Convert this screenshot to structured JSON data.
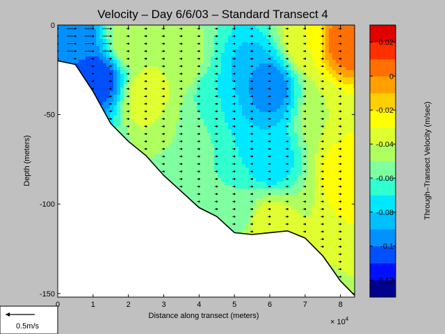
{
  "chart_data": {
    "type": "heatmap",
    "title": "Velocity – Day 6/6/03 – Standard Transect 4",
    "xlabel": "Distance along transect (meters)",
    "x_multiplier": "× 10",
    "x_multiplier_exp": "4",
    "ylabel": "Depth (meters)",
    "xlim": [
      0,
      8.4
    ],
    "ylim": [
      -152,
      0
    ],
    "x_ticks": [
      "0",
      "1",
      "2",
      "3",
      "4",
      "5",
      "6",
      "7",
      "8"
    ],
    "y_ticks": [
      {
        "value": 0,
        "label": "0"
      },
      {
        "value": -50,
        "label": "-50"
      },
      {
        "value": -100,
        "label": "-100"
      },
      {
        "value": -150,
        "label": "-150"
      }
    ],
    "colorbar": {
      "label": "Through–Transect Velocity (m/sec)",
      "range": [
        -0.13,
        0.03
      ],
      "ticks": [
        {
          "value": 0.02,
          "label": "0.02"
        },
        {
          "value": 0,
          "label": "0"
        },
        {
          "value": -0.02,
          "label": "-0.02"
        },
        {
          "value": -0.04,
          "label": "-0.04"
        },
        {
          "value": -0.06,
          "label": "-0.06"
        },
        {
          "value": -0.08,
          "label": "-0.08"
        },
        {
          "value": -0.1,
          "label": "-0.1"
        },
        {
          "value": -0.12,
          "label": "-0.12"
        }
      ],
      "levels": [
        -0.13,
        -0.12,
        -0.11,
        -0.1,
        -0.09,
        -0.08,
        -0.07,
        -0.06,
        -0.05,
        -0.04,
        -0.03,
        -0.02,
        -0.01,
        0.0,
        0.01,
        0.02,
        0.03
      ],
      "colors": [
        "#00008f",
        "#0010ff",
        "#0050ff",
        "#0090ff",
        "#00c0ff",
        "#00e8ff",
        "#30ffd0",
        "#80ffa0",
        "#b0ff60",
        "#e0ff30",
        "#ffff00",
        "#ffd000",
        "#ffa000",
        "#ff7000",
        "#ff3000",
        "#e00000",
        "#a00000"
      ]
    },
    "seafloor": [
      {
        "x": 0,
        "depth": -20
      },
      {
        "x": 0.5,
        "depth": -22
      },
      {
        "x": 1.0,
        "depth": -37
      },
      {
        "x": 1.5,
        "depth": -55
      },
      {
        "x": 2.0,
        "depth": -65
      },
      {
        "x": 2.5,
        "depth": -73
      },
      {
        "x": 3.0,
        "depth": -84
      },
      {
        "x": 3.5,
        "depth": -93
      },
      {
        "x": 4.0,
        "depth": -102
      },
      {
        "x": 4.5,
        "depth": -107
      },
      {
        "x": 5.0,
        "depth": -116
      },
      {
        "x": 5.5,
        "depth": -117
      },
      {
        "x": 6.0,
        "depth": -116
      },
      {
        "x": 6.5,
        "depth": -115
      },
      {
        "x": 7.0,
        "depth": -119
      },
      {
        "x": 7.5,
        "depth": -129
      },
      {
        "x": 8.0,
        "depth": -143
      },
      {
        "x": 8.4,
        "depth": -151
      }
    ],
    "velocity_field": {
      "description_points": [
        {
          "x": 0.5,
          "depth": -10,
          "v": -0.1
        },
        {
          "x": 1.2,
          "depth": -30,
          "v": -0.11
        },
        {
          "x": 2.0,
          "depth": -10,
          "v": -0.04
        },
        {
          "x": 2.5,
          "depth": -40,
          "v": -0.03
        },
        {
          "x": 3.5,
          "depth": -20,
          "v": -0.04
        },
        {
          "x": 3.5,
          "depth": -60,
          "v": -0.05
        },
        {
          "x": 4.5,
          "depth": -40,
          "v": -0.07
        },
        {
          "x": 5.5,
          "depth": -30,
          "v": -0.09
        },
        {
          "x": 6.0,
          "depth": -35,
          "v": -0.1
        },
        {
          "x": 6.0,
          "depth": -75,
          "v": -0.08
        },
        {
          "x": 5.0,
          "depth": -100,
          "v": -0.06
        },
        {
          "x": 7.0,
          "depth": -10,
          "v": -0.03
        },
        {
          "x": 7.5,
          "depth": -50,
          "v": -0.04
        },
        {
          "x": 8.1,
          "depth": -10,
          "v": 0.01
        },
        {
          "x": 8.2,
          "depth": -80,
          "v": -0.02
        },
        {
          "x": 6.0,
          "depth": -112,
          "v": -0.03
        }
      ]
    },
    "scale_arrow_label": "0.5m/s"
  }
}
